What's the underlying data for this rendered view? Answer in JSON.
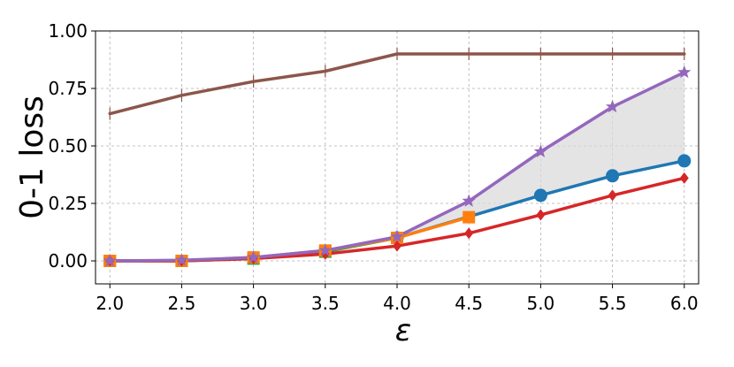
{
  "chart_data": {
    "type": "line",
    "title": "",
    "xlabel": "ε",
    "ylabel": "0-1 loss",
    "xlim": [
      1.9,
      6.1
    ],
    "ylim": [
      -0.1,
      1.0
    ],
    "x_ticks": [
      "2.0",
      "2.5",
      "3.0",
      "3.5",
      "4.0",
      "4.5",
      "5.0",
      "5.5",
      "6.0"
    ],
    "y_ticks": [
      "0.00",
      "0.25",
      "0.50",
      "0.75",
      "1.00"
    ],
    "grid": true,
    "legend": "none",
    "shaded_region": {
      "between": [
        "purple",
        "blue"
      ],
      "x": [
        4.0,
        4.5,
        5.0,
        5.5,
        6.0
      ],
      "upper": [
        0.105,
        0.26,
        0.475,
        0.67,
        0.82
      ],
      "lower": [
        0.1,
        0.19,
        0.285,
        0.37,
        0.435
      ],
      "color": "#d9d9d9"
    },
    "series": [
      {
        "color": "#8c564b",
        "marker": "plus",
        "x": [
          2.0,
          2.5,
          3.0,
          3.5,
          4.0,
          4.5,
          5.0,
          5.5,
          6.0
        ],
        "values": [
          0.64,
          0.72,
          0.78,
          0.825,
          0.9,
          0.9,
          0.9,
          0.9,
          0.9
        ]
      },
      {
        "color": "#2ca02c",
        "marker": "square",
        "x": [
          2.0,
          2.5,
          3.0,
          3.5,
          4.0
        ],
        "values": [
          0.0,
          0.0,
          0.01,
          0.04,
          0.1
        ]
      },
      {
        "color": "#1f77b4",
        "marker": "circle",
        "x": [
          4.0,
          5.0,
          5.5,
          6.0
        ],
        "values": [
          0.1,
          0.285,
          0.37,
          0.435
        ]
      },
      {
        "color": "#ff7f0e",
        "marker": "square",
        "x": [
          2.0,
          2.5,
          3.0,
          3.5,
          4.0,
          4.5
        ],
        "values": [
          0.0,
          0.0,
          0.015,
          0.045,
          0.1,
          0.19
        ]
      },
      {
        "color": "#d62728",
        "marker": "diamond",
        "x": [
          2.0,
          2.5,
          3.0,
          3.5,
          4.0,
          4.5,
          5.0,
          5.5,
          6.0
        ],
        "values": [
          0.0,
          0.0,
          0.01,
          0.03,
          0.065,
          0.12,
          0.2,
          0.285,
          0.36
        ]
      },
      {
        "color": "#9467bd",
        "marker": "star",
        "x": [
          2.0,
          2.5,
          3.0,
          3.5,
          4.0,
          4.5,
          5.0,
          5.5,
          6.0
        ],
        "values": [
          0.0,
          0.003,
          0.015,
          0.045,
          0.105,
          0.26,
          0.475,
          0.67,
          0.82
        ]
      }
    ]
  }
}
